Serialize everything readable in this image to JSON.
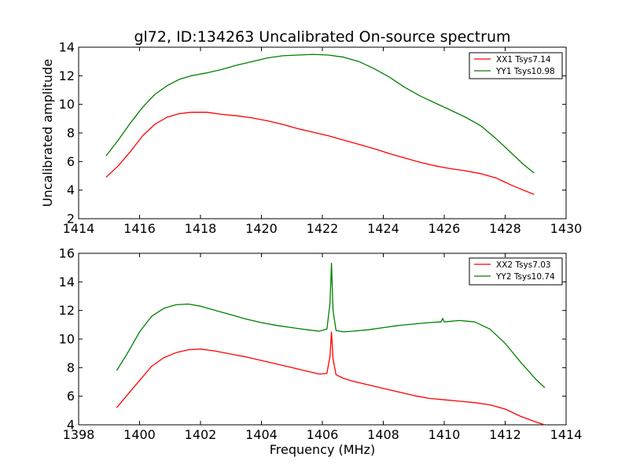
{
  "figure": {
    "title": "gl72, ID:134263 Uncalibrated On-source spectrum",
    "ylabel": "Uncalibrated amplitude",
    "xlabel": "Frequency (MHz)"
  },
  "chart_data": [
    {
      "type": "line",
      "title": "gl72, ID:134263 Uncalibrated On-source spectrum",
      "xlabel": "",
      "ylabel": "Uncalibrated amplitude",
      "xlim": [
        1414,
        1430
      ],
      "ylim": [
        2,
        14
      ],
      "xticks": [
        "1414",
        "1416",
        "1418",
        "1420",
        "1422",
        "1424",
        "1426",
        "1428",
        "1430"
      ],
      "yticks": [
        "2",
        "4",
        "6",
        "8",
        "10",
        "12",
        "14"
      ],
      "legend_position": "top-right",
      "series": [
        {
          "name": "XX1 Tsys7.14",
          "color": "#ff0000",
          "x": [
            1414.9,
            1415.3,
            1415.7,
            1416.1,
            1416.5,
            1416.9,
            1417.3,
            1417.7,
            1418.2,
            1418.7,
            1419.2,
            1419.7,
            1420.2,
            1420.7,
            1421.2,
            1421.7,
            1422.2,
            1422.7,
            1423.2,
            1423.7,
            1424.2,
            1424.7,
            1425.2,
            1425.7,
            1426.2,
            1426.7,
            1427.2,
            1427.7,
            1428.2,
            1428.6,
            1428.95
          ],
          "y": [
            4.9,
            5.7,
            6.7,
            7.8,
            8.6,
            9.1,
            9.35,
            9.45,
            9.45,
            9.3,
            9.2,
            9.05,
            8.85,
            8.6,
            8.3,
            8.05,
            7.8,
            7.5,
            7.2,
            6.9,
            6.55,
            6.25,
            5.95,
            5.7,
            5.5,
            5.35,
            5.15,
            4.85,
            4.35,
            4.0,
            3.7
          ]
        },
        {
          "name": "YY1 Tsys10.98",
          "color": "#008000",
          "x": [
            1414.9,
            1415.3,
            1415.7,
            1416.1,
            1416.5,
            1416.9,
            1417.3,
            1417.7,
            1418.2,
            1418.7,
            1419.2,
            1419.7,
            1420.2,
            1420.7,
            1421.2,
            1421.7,
            1422.2,
            1422.7,
            1423.2,
            1423.7,
            1424.2,
            1424.7,
            1425.2,
            1425.7,
            1426.2,
            1426.7,
            1427.2,
            1427.7,
            1428.2,
            1428.6,
            1428.95
          ],
          "y": [
            6.4,
            7.5,
            8.7,
            9.8,
            10.7,
            11.3,
            11.75,
            12.0,
            12.2,
            12.45,
            12.75,
            13.0,
            13.25,
            13.4,
            13.45,
            13.5,
            13.45,
            13.3,
            13.0,
            12.5,
            11.9,
            11.2,
            10.6,
            10.1,
            9.6,
            9.1,
            8.5,
            7.6,
            6.6,
            5.8,
            5.2
          ]
        }
      ]
    },
    {
      "type": "line",
      "title": "",
      "xlabel": "Frequency (MHz)",
      "ylabel": "",
      "xlim": [
        1398,
        1414
      ],
      "ylim": [
        4,
        16
      ],
      "xticks": [
        "1398",
        "1400",
        "1402",
        "1404",
        "1406",
        "1408",
        "1410",
        "1412",
        "1414"
      ],
      "yticks": [
        "4",
        "6",
        "8",
        "10",
        "12",
        "14",
        "16"
      ],
      "legend_position": "top-right",
      "series": [
        {
          "name": "XX2 Tsys7.03",
          "color": "#ff0000",
          "x": [
            1399.25,
            1399.6,
            1400.0,
            1400.4,
            1400.8,
            1401.2,
            1401.6,
            1402.0,
            1402.5,
            1403.0,
            1403.5,
            1404.0,
            1404.5,
            1405.0,
            1405.5,
            1405.9,
            1406.15,
            1406.25,
            1406.3,
            1406.35,
            1406.45,
            1406.7,
            1407.0,
            1407.5,
            1408.0,
            1408.5,
            1409.0,
            1409.5,
            1410.0,
            1410.5,
            1411.0,
            1411.5,
            1412.0,
            1412.5,
            1413.0,
            1413.3
          ],
          "y": [
            5.2,
            6.1,
            7.1,
            8.1,
            8.7,
            9.05,
            9.25,
            9.3,
            9.15,
            8.95,
            8.75,
            8.5,
            8.25,
            8.0,
            7.75,
            7.55,
            7.6,
            8.8,
            10.5,
            8.6,
            7.5,
            7.25,
            7.05,
            6.8,
            6.55,
            6.3,
            6.05,
            5.85,
            5.75,
            5.65,
            5.55,
            5.4,
            5.1,
            4.6,
            4.2,
            4.0
          ]
        },
        {
          "name": "YY2 Tsys10.74",
          "color": "#008000",
          "x": [
            1399.25,
            1399.6,
            1400.0,
            1400.4,
            1400.8,
            1401.2,
            1401.6,
            1402.0,
            1402.5,
            1403.0,
            1403.5,
            1404.0,
            1404.5,
            1405.0,
            1405.5,
            1405.9,
            1406.15,
            1406.25,
            1406.3,
            1406.35,
            1406.45,
            1406.7,
            1407.0,
            1407.5,
            1408.0,
            1408.5,
            1409.0,
            1409.5,
            1409.9,
            1409.95,
            1410.0,
            1410.5,
            1411.0,
            1411.5,
            1412.0,
            1412.5,
            1413.0,
            1413.3
          ],
          "y": [
            7.8,
            9.0,
            10.5,
            11.6,
            12.15,
            12.4,
            12.45,
            12.3,
            12.0,
            11.7,
            11.4,
            11.15,
            10.95,
            10.8,
            10.65,
            10.55,
            10.7,
            12.5,
            15.3,
            12.0,
            10.6,
            10.5,
            10.55,
            10.65,
            10.8,
            10.95,
            11.05,
            11.15,
            11.2,
            11.45,
            11.2,
            11.3,
            11.2,
            10.7,
            9.7,
            8.4,
            7.2,
            6.6
          ]
        }
      ]
    }
  ]
}
